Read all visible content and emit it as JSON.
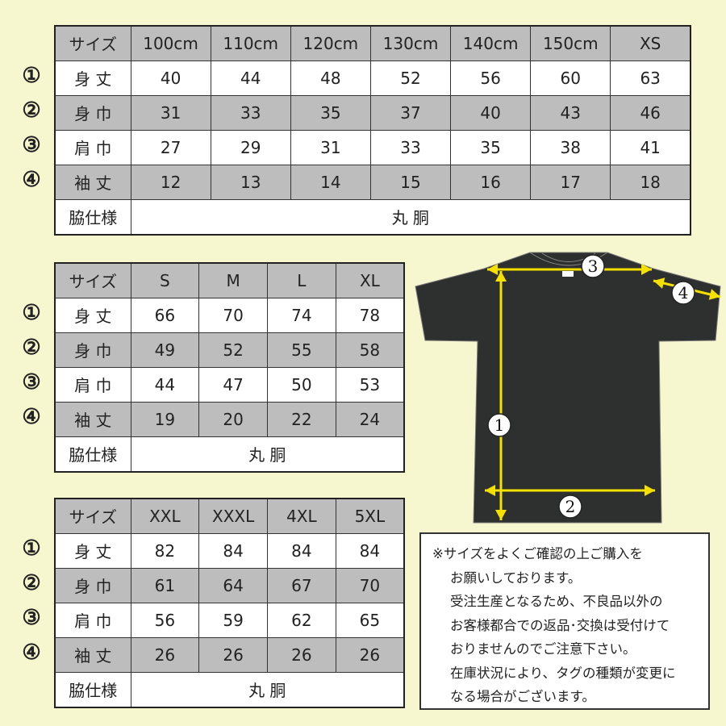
{
  "row_markers": [
    "①",
    "②",
    "③",
    "④"
  ],
  "tables": [
    {
      "header_label": "サイズ",
      "sizes": [
        "100cm",
        "110cm",
        "120cm",
        "130cm",
        "140cm",
        "150cm",
        "XS"
      ],
      "rows": [
        {
          "label": "身 丈",
          "values": [
            "40",
            "44",
            "48",
            "52",
            "56",
            "60",
            "63"
          ]
        },
        {
          "label": "身 巾",
          "values": [
            "31",
            "33",
            "35",
            "37",
            "40",
            "43",
            "46"
          ]
        },
        {
          "label": "肩 巾",
          "values": [
            "27",
            "29",
            "31",
            "33",
            "35",
            "38",
            "41"
          ]
        },
        {
          "label": "袖 丈",
          "values": [
            "12",
            "13",
            "14",
            "15",
            "16",
            "17",
            "18"
          ]
        }
      ],
      "side_label": "脇仕様",
      "side_value": "丸 胴"
    },
    {
      "header_label": "サイズ",
      "sizes": [
        "S",
        "M",
        "L",
        "XL"
      ],
      "rows": [
        {
          "label": "身 丈",
          "values": [
            "66",
            "70",
            "74",
            "78"
          ]
        },
        {
          "label": "身 巾",
          "values": [
            "49",
            "52",
            "55",
            "58"
          ]
        },
        {
          "label": "肩 巾",
          "values": [
            "44",
            "47",
            "50",
            "53"
          ]
        },
        {
          "label": "袖 丈",
          "values": [
            "19",
            "20",
            "22",
            "24"
          ]
        }
      ],
      "side_label": "脇仕様",
      "side_value": "丸 胴"
    },
    {
      "header_label": "サイズ",
      "sizes": [
        "XXL",
        "XXXL",
        "4XL",
        "5XL"
      ],
      "rows": [
        {
          "label": "身 丈",
          "values": [
            "82",
            "84",
            "84",
            "84"
          ]
        },
        {
          "label": "身 巾",
          "values": [
            "61",
            "64",
            "67",
            "70"
          ]
        },
        {
          "label": "肩 巾",
          "values": [
            "56",
            "59",
            "62",
            "65"
          ]
        },
        {
          "label": "袖 丈",
          "values": [
            "26",
            "26",
            "26",
            "26"
          ]
        }
      ],
      "side_label": "脇仕様",
      "side_value": "丸 胴"
    }
  ],
  "diagram": {
    "markers": [
      "1",
      "2",
      "3",
      "4"
    ],
    "shirt_color": "#2e302f",
    "arrow_color": "#f5e000"
  },
  "note": {
    "lines": [
      "※サイズをよくご確認の上ご購入を",
      "お願いしております。",
      "受注生産となるため、不良品以外の",
      "お客様都合での返品･交換は受付けて",
      "おりませんのでご注意下さい。",
      "在庫状況により、タグの種類が変更に",
      "なる場合がございます。"
    ]
  }
}
